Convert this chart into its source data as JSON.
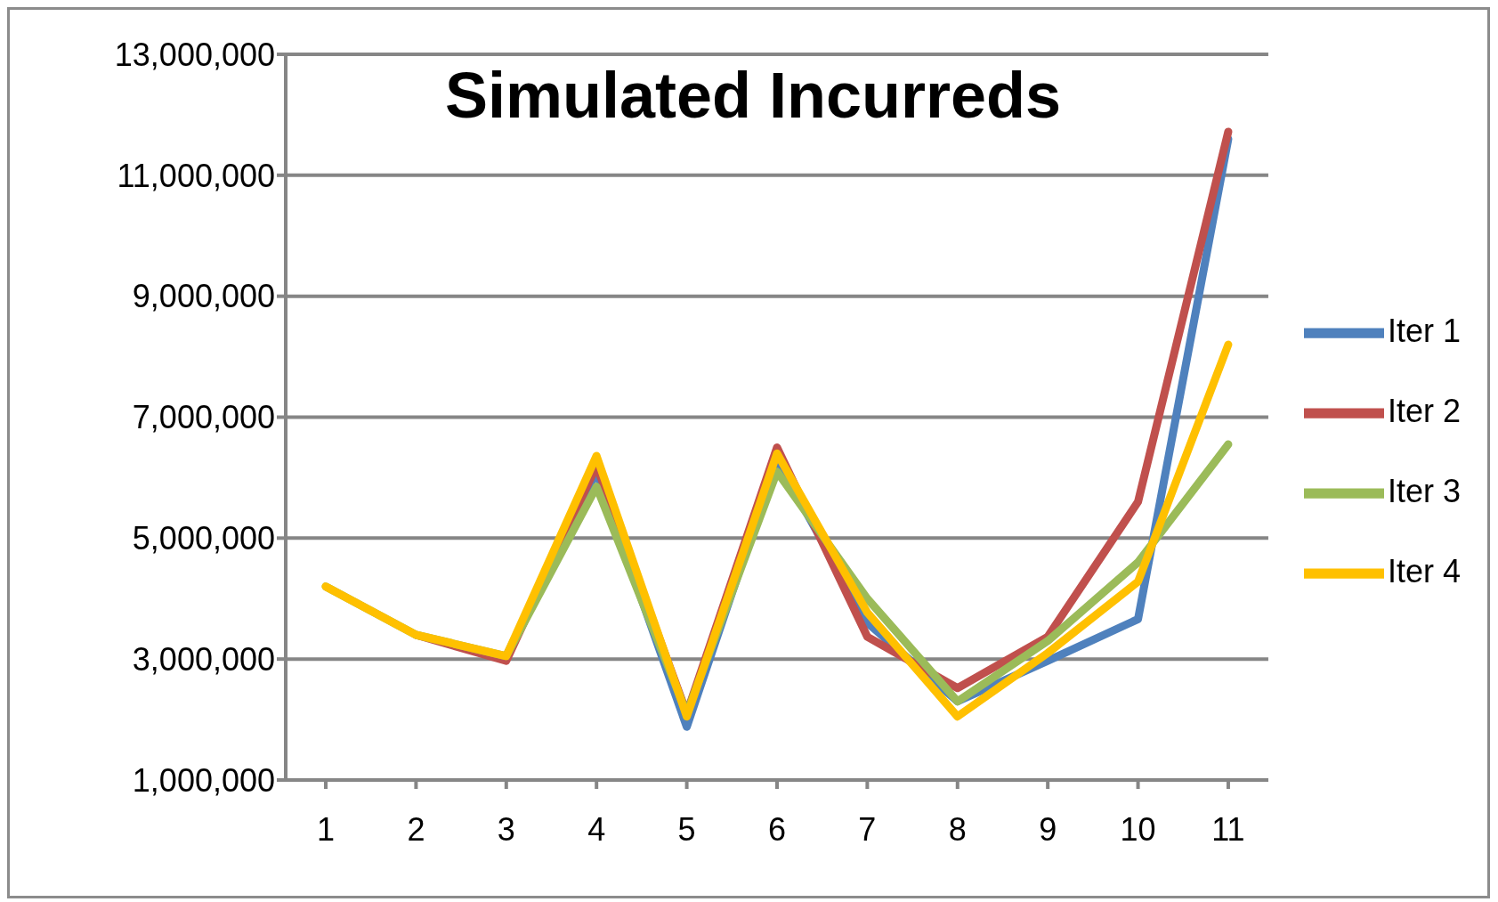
{
  "chart_data": {
    "type": "line",
    "title": "Simulated Incurreds",
    "categories": [
      "1",
      "2",
      "3",
      "4",
      "5",
      "6",
      "7",
      "8",
      "9",
      "10",
      "11"
    ],
    "series": [
      {
        "name": "Iter 1",
        "color": "#4f81bd",
        "values": [
          null,
          null,
          3050000,
          6100000,
          1880000,
          6300000,
          3600000,
          2300000,
          2970000,
          3660000,
          11600000
        ]
      },
      {
        "name": "Iter 2",
        "color": "#c0504d",
        "values": [
          null,
          3400000,
          2970000,
          6200000,
          2100000,
          6500000,
          3370000,
          2520000,
          3370000,
          5600000,
          11720000
        ]
      },
      {
        "name": "Iter 3",
        "color": "#9bbb59",
        "values": [
          4200000,
          3400000,
          3050000,
          5850000,
          2100000,
          6100000,
          4000000,
          2300000,
          3300000,
          4600000,
          6550000
        ]
      },
      {
        "name": "Iter 4",
        "color": "#ffc000",
        "values": [
          4200000,
          3400000,
          3050000,
          6360000,
          2050000,
          6400000,
          3770000,
          2050000,
          3100000,
          4280000,
          8200000
        ]
      }
    ],
    "ylim": [
      1000000,
      13000000
    ],
    "yticks": [
      {
        "value": 1000000,
        "label": "1,000,000"
      },
      {
        "value": 3000000,
        "label": "3,000,000"
      },
      {
        "value": 5000000,
        "label": "5,000,000"
      },
      {
        "value": 7000000,
        "label": "7,000,000"
      },
      {
        "value": 9000000,
        "label": "9,000,000"
      },
      {
        "value": 11000000,
        "label": "11,000,000"
      },
      {
        "value": 13000000,
        "label": "13,000,000"
      }
    ],
    "grid": "y",
    "legend": "right",
    "marker": "none",
    "line_style": "solid"
  }
}
